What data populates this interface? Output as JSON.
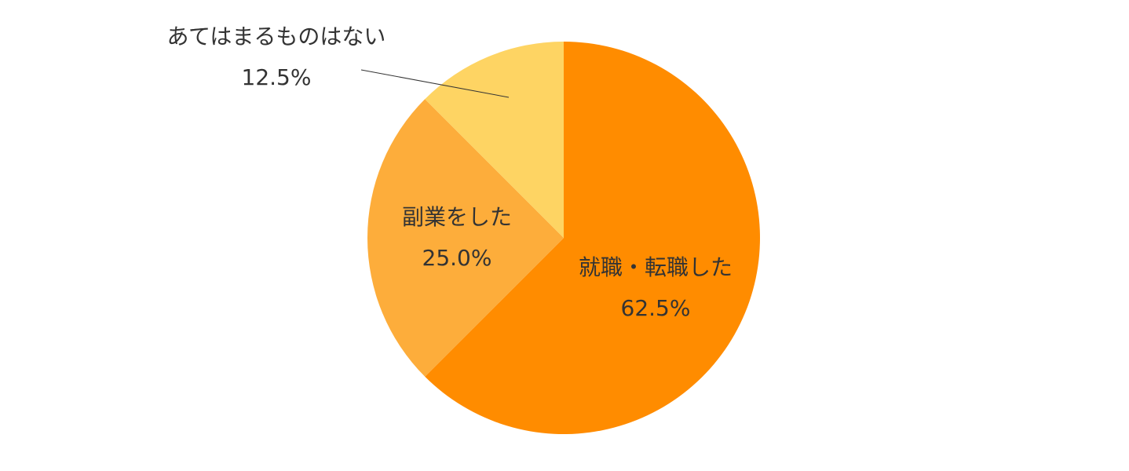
{
  "chart_data": {
    "type": "pie",
    "title": "",
    "start_angle_deg": 0,
    "direction": "clockwise",
    "legend": "none",
    "slices": [
      {
        "label": "就職・転職した",
        "value": 62.5,
        "value_label": "62.5%",
        "color": "#FF8C00",
        "label_placement": "inside"
      },
      {
        "label": "副業をした",
        "value": 25.0,
        "value_label": "25.0%",
        "color": "#FDAD3B",
        "label_placement": "inside"
      },
      {
        "label": "あてはまるものはない",
        "value": 12.5,
        "value_label": "12.5%",
        "color": "#FED463",
        "label_placement": "outside-leader"
      }
    ]
  }
}
